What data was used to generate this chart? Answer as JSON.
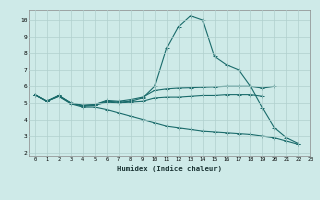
{
  "xlabel": "Humidex (Indice chaleur)",
  "ylabel": "",
  "bg_color": "#ceeae8",
  "grid_color": "#b0d0ce",
  "line_color": "#1a6b6b",
  "xlim": [
    -0.5,
    23
  ],
  "ylim": [
    1.8,
    10.6
  ],
  "xticks": [
    0,
    1,
    2,
    3,
    4,
    5,
    6,
    7,
    8,
    9,
    10,
    11,
    12,
    13,
    14,
    15,
    16,
    17,
    18,
    19,
    20,
    21,
    22,
    23
  ],
  "yticks": [
    2,
    3,
    4,
    5,
    6,
    7,
    8,
    9,
    10
  ],
  "series": [
    {
      "x": [
        0,
        1,
        2,
        3,
        4,
        5,
        6,
        7,
        8,
        9,
        10,
        11,
        12,
        13,
        14,
        15,
        16,
        17,
        18,
        19,
        20,
        21,
        22
      ],
      "y": [
        5.5,
        5.1,
        5.45,
        5.0,
        4.85,
        4.9,
        5.1,
        5.05,
        5.1,
        5.3,
        6.0,
        8.3,
        9.6,
        10.25,
        10.0,
        7.8,
        7.3,
        7.0,
        6.0,
        4.7,
        3.5,
        2.9,
        2.55
      ]
    },
    {
      "x": [
        0,
        1,
        2,
        3,
        4,
        5,
        6,
        7,
        8,
        9,
        10,
        11,
        12,
        13,
        14,
        15,
        16,
        17,
        18,
        19,
        20
      ],
      "y": [
        5.5,
        5.1,
        5.45,
        5.0,
        4.85,
        4.9,
        5.15,
        5.1,
        5.2,
        5.35,
        5.75,
        5.85,
        5.9,
        5.92,
        5.95,
        5.97,
        6.0,
        6.0,
        6.0,
        5.9,
        6.0
      ]
    },
    {
      "x": [
        0,
        1,
        2,
        3,
        4,
        5,
        6,
        7,
        8,
        9,
        10,
        11,
        12,
        13,
        14,
        15,
        16,
        17,
        18,
        19
      ],
      "y": [
        5.5,
        5.1,
        5.4,
        5.0,
        4.8,
        4.85,
        5.05,
        5.0,
        5.05,
        5.1,
        5.3,
        5.35,
        5.35,
        5.4,
        5.45,
        5.45,
        5.5,
        5.5,
        5.5,
        5.4
      ]
    },
    {
      "x": [
        0,
        1,
        2,
        3,
        4,
        5,
        6,
        7,
        8,
        9,
        10,
        11,
        12,
        13,
        14,
        15,
        16,
        17,
        18,
        19,
        20,
        21,
        22
      ],
      "y": [
        5.5,
        5.1,
        5.4,
        4.95,
        4.75,
        4.75,
        4.6,
        4.4,
        4.2,
        4.0,
        3.8,
        3.6,
        3.5,
        3.4,
        3.3,
        3.25,
        3.2,
        3.15,
        3.1,
        3.0,
        2.9,
        2.7,
        2.5
      ]
    }
  ]
}
